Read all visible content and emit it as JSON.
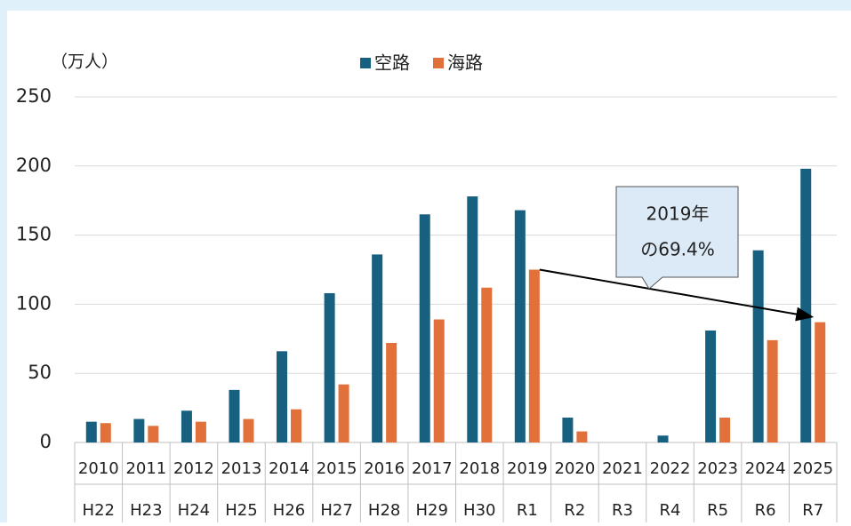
{
  "chart_data": {
    "type": "bar",
    "y_unit_label": "（万人）",
    "categories": [
      "2010",
      "2011",
      "2012",
      "2013",
      "2014",
      "2015",
      "2016",
      "2017",
      "2018",
      "2019",
      "2020",
      "2021",
      "2022",
      "2023",
      "2024",
      "2025"
    ],
    "era_labels": [
      "H22",
      "H23",
      "H24",
      "H25",
      "H26",
      "H27",
      "H28",
      "H29",
      "H30",
      "R1",
      "R2",
      "R3",
      "R4",
      "R5",
      "R6",
      "R7"
    ],
    "series": [
      {
        "name": "空路",
        "color": "#17607f",
        "values": [
          15,
          17,
          23,
          38,
          66,
          108,
          136,
          165,
          178,
          168,
          18,
          0,
          5,
          81,
          139,
          198
        ]
      },
      {
        "name": "海路",
        "color": "#e2703a",
        "values": [
          14,
          12,
          15,
          17,
          24,
          42,
          72,
          89,
          112,
          125,
          8,
          0,
          0,
          18,
          74,
          87
        ]
      }
    ],
    "ylim": [
      0,
      250
    ],
    "yticks": [
      0,
      50,
      100,
      150,
      200,
      250
    ],
    "grid": true,
    "legend": "top",
    "annotation": {
      "lines": [
        "2019年",
        "の69.4%"
      ]
    }
  }
}
